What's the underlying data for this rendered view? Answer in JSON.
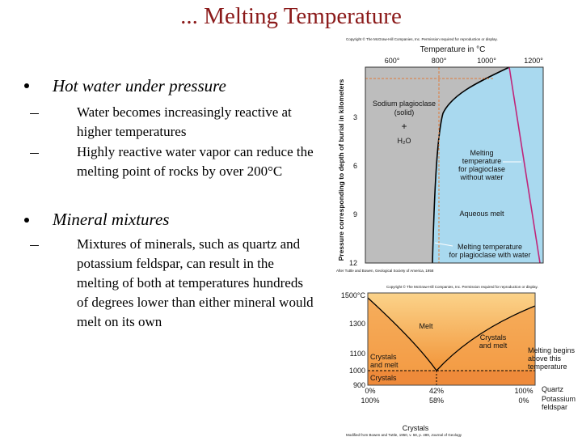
{
  "title": "... Melting Temperature",
  "bullets": [
    {
      "text": "Hot water under pressure",
      "sub": [
        "Water becomes increasingly reactive at higher temperatures",
        "Highly reactive water vapor can reduce the melting point of rocks by over 200°C"
      ]
    },
    {
      "text": "Mineral mixtures",
      "sub": [
        "Mixtures of minerals, such as quartz and potassium feldspar, can result in the melting of both at temperatures hundreds of degrees lower than either mineral would melt on its own"
      ]
    }
  ],
  "figure1": {
    "copyright": "Copyright © The McGraw-Hill Companies, Inc. Permission required for reproduction or display.",
    "x_label": "Temperature in °C",
    "x_ticks": [
      "600°",
      "800°",
      "1000°",
      "1200°"
    ],
    "y_label": "Pressure corresponding to depth of burial in kilometers",
    "y_ticks": [
      "3",
      "6",
      "9",
      "12"
    ],
    "solid": [
      "Sodium plagioclase",
      "(solid)",
      "+",
      "H₂O"
    ],
    "dry_curve": [
      "Melting",
      "temperature",
      "for plagioclase",
      "without water"
    ],
    "aqueous": "Aqueous melt",
    "wet_curve": [
      "Melting temperature",
      "for plagioclase with water"
    ],
    "source": "After Tuttle and Bowen, Geological Society of America, 1958"
  },
  "figure2": {
    "copyright": "Copyright © The McGraw-Hill Companies, Inc. Permission required for reproduction or display.",
    "y_ticks": [
      "1500°C",
      "1300",
      "1100",
      "1000",
      "900"
    ],
    "melt": "Melt",
    "right_zone": [
      "Crystals",
      "and melt"
    ],
    "left_zone": [
      "Crystals",
      "and melt"
    ],
    "crystals_zone": "Crystals",
    "note": [
      "Melting begins",
      "above this",
      "temperature"
    ],
    "quartz_ticks": [
      "0%",
      "42%",
      "100%"
    ],
    "quartz": "Quartz",
    "feldspar_ticks": [
      "100%",
      "58%",
      "0%"
    ],
    "feldspar": [
      "Potassium",
      "feldspar"
    ],
    "x_label": "Crystals",
    "source": "Modified from Bowen and Tuttle, 1950, v. 58, p. 489, Journal of Geology"
  }
}
